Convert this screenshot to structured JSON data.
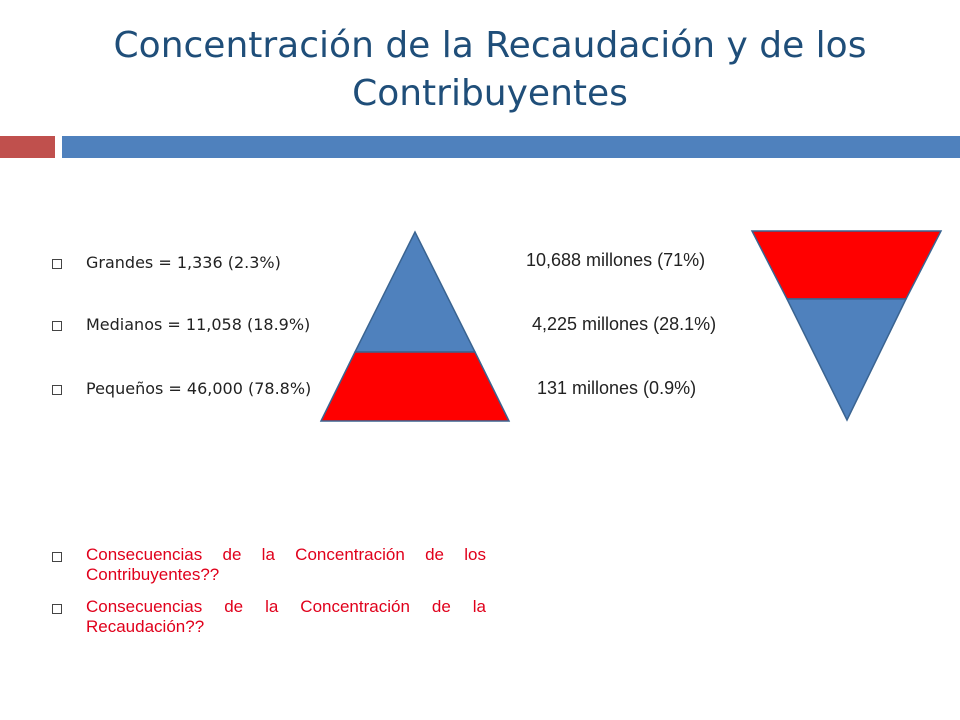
{
  "slide": {
    "title": "Concentración de la Recaudación y de los Contribuyentes",
    "stats": [
      "Grandes = 1,336 (2.3%)",
      "Medianos = 11,058 (18.9%)",
      "Pequeños = 46,000 (78.8%)"
    ],
    "amounts": [
      "10,688 millones (71%)",
      "4,225 millones (28.1%)",
      "131 millones (0.9%)"
    ],
    "questions": [
      "Consecuencias de la Concentración de los Contribuyentes??",
      "Consecuencias de la Concentración de la Recaudación??"
    ]
  },
  "colors": {
    "title": "#1f4e79",
    "accent_red": "#c0504d",
    "accent_blue": "#4f81bd",
    "shape_red": "#ff0000",
    "shape_blue": "#4f81bd",
    "question_text": "#e0001b"
  }
}
